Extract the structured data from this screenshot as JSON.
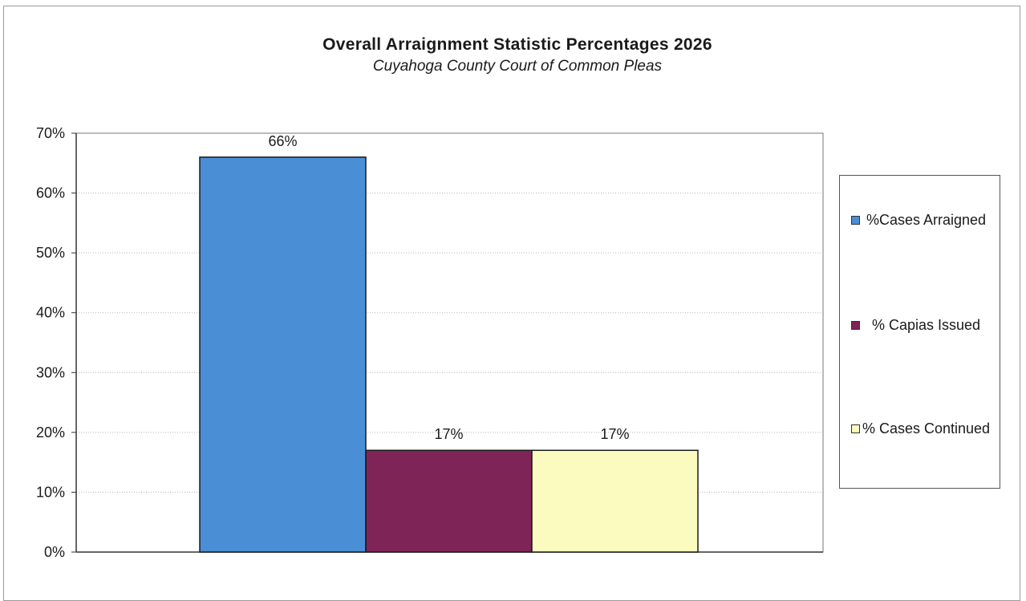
{
  "chart_data": {
    "type": "bar",
    "title": "Overall Arraignment Statistic Percentages 2026",
    "subtitle": "Cuyahoga County Court of Common Pleas",
    "xlabel": "",
    "ylabel": "",
    "ylim": [
      0,
      70
    ],
    "yticks": [
      "0%",
      "10%",
      "20%",
      "30%",
      "40%",
      "50%",
      "60%",
      "70%"
    ],
    "grid": true,
    "legend_position": "right",
    "series": [
      {
        "name": "%Cases Arraigned",
        "values": [
          66
        ],
        "label": "66%",
        "color": "#4a8fd6"
      },
      {
        "name": "% Capias Issued",
        "values": [
          17
        ],
        "label": "17%",
        "color": "#7f2457"
      },
      {
        "name": "% Cases Continued",
        "values": [
          17
        ],
        "label": "17%",
        "color": "#fbfbbf"
      }
    ]
  }
}
